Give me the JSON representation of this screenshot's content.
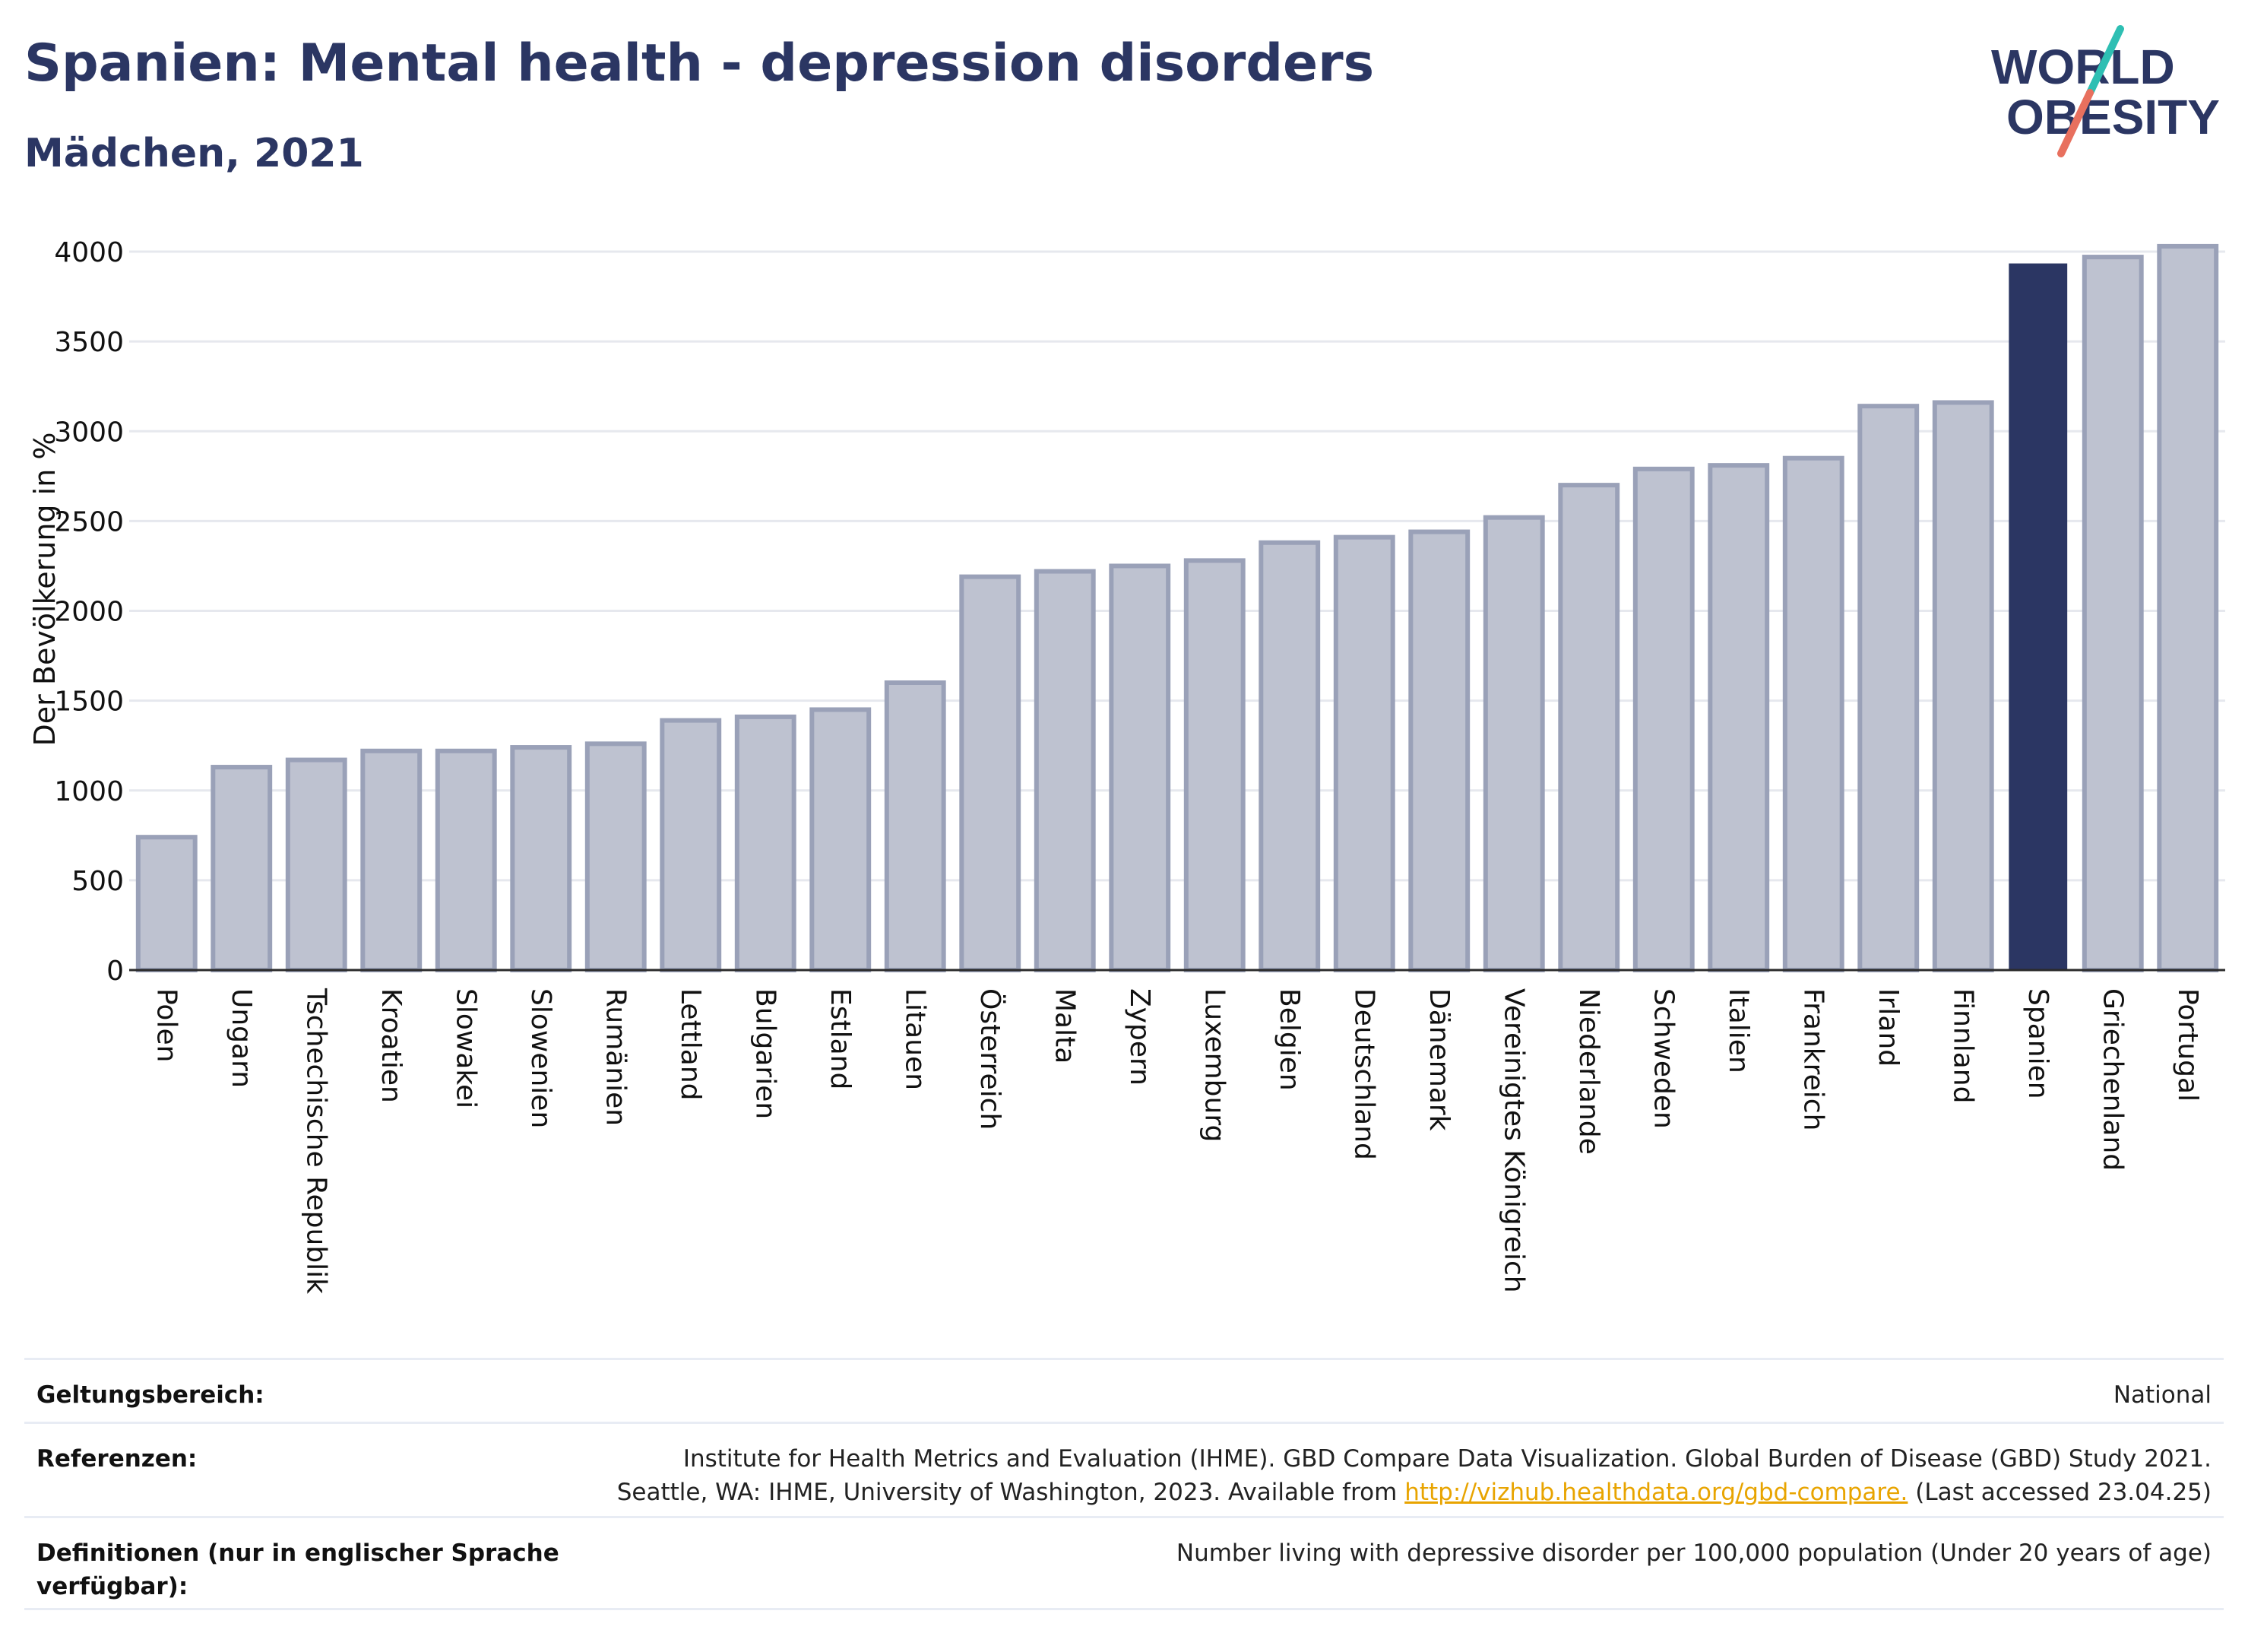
{
  "header": {
    "title": "Spanien: Mental health - depression disorders",
    "subtitle": "Mädchen, 2021"
  },
  "logo": {
    "line1": "WORLD",
    "line2": "OBESITY"
  },
  "colors": {
    "bar": "#bec2d0",
    "bar_border": "#9aa1b8",
    "highlight": "#2b3663",
    "grid": "#e6e8ee",
    "logo_text": "#2b3663",
    "logo_teal": "#2ebfb3",
    "logo_coral": "#e8705e"
  },
  "chart_data": {
    "type": "bar",
    "ylabel": "Der Bevölkerung in %",
    "ylim": [
      0,
      4000
    ],
    "yticks": [
      0,
      500,
      1000,
      1500,
      2000,
      2500,
      3000,
      3500,
      4000
    ],
    "highlight": "Spanien",
    "grid": true,
    "categories": [
      "Polen",
      "Ungarn",
      "Tschechische Republik",
      "Kroatien",
      "Slowakei",
      "Slowenien",
      "Rumänien",
      "Lettland",
      "Bulgarien",
      "Estland",
      "Litauen",
      "Österreich",
      "Malta",
      "Zypern",
      "Luxemburg",
      "Belgien",
      "Deutschland",
      "Dänemark",
      "Vereinigtes Königreich",
      "Niederlande",
      "Schweden",
      "Italien",
      "Frankreich",
      "Irland",
      "Finnland",
      "Spanien",
      "Griechenland",
      "Portugal"
    ],
    "values": [
      740,
      1130,
      1170,
      1220,
      1220,
      1240,
      1260,
      1390,
      1410,
      1450,
      1600,
      2190,
      2220,
      2250,
      2280,
      2380,
      2410,
      2440,
      2520,
      2700,
      2790,
      2810,
      2850,
      3140,
      3160,
      3930,
      3970,
      4030
    ]
  },
  "footer": {
    "scope_label": "Geltungsbereich:",
    "scope_value": "National",
    "refs_label": "Referenzen:",
    "refs_line1": "Institute for Health Metrics and Evaluation (IHME). GBD Compare Data Visualization. Global Burden of Disease (GBD) Study 2021.",
    "refs_line2_pre": "Seattle, WA: IHME, University of Washington, 2023. Available from ",
    "refs_link": "http://vizhub.healthdata.org/gbd-compare.",
    "refs_line2_post": " (Last accessed 23.04.25)",
    "defs_label": "Definitionen (nur in englischer Sprache verfügbar):",
    "defs_value": "Number living with depressive disorder per 100,000 population (Under 20 years of age)"
  }
}
